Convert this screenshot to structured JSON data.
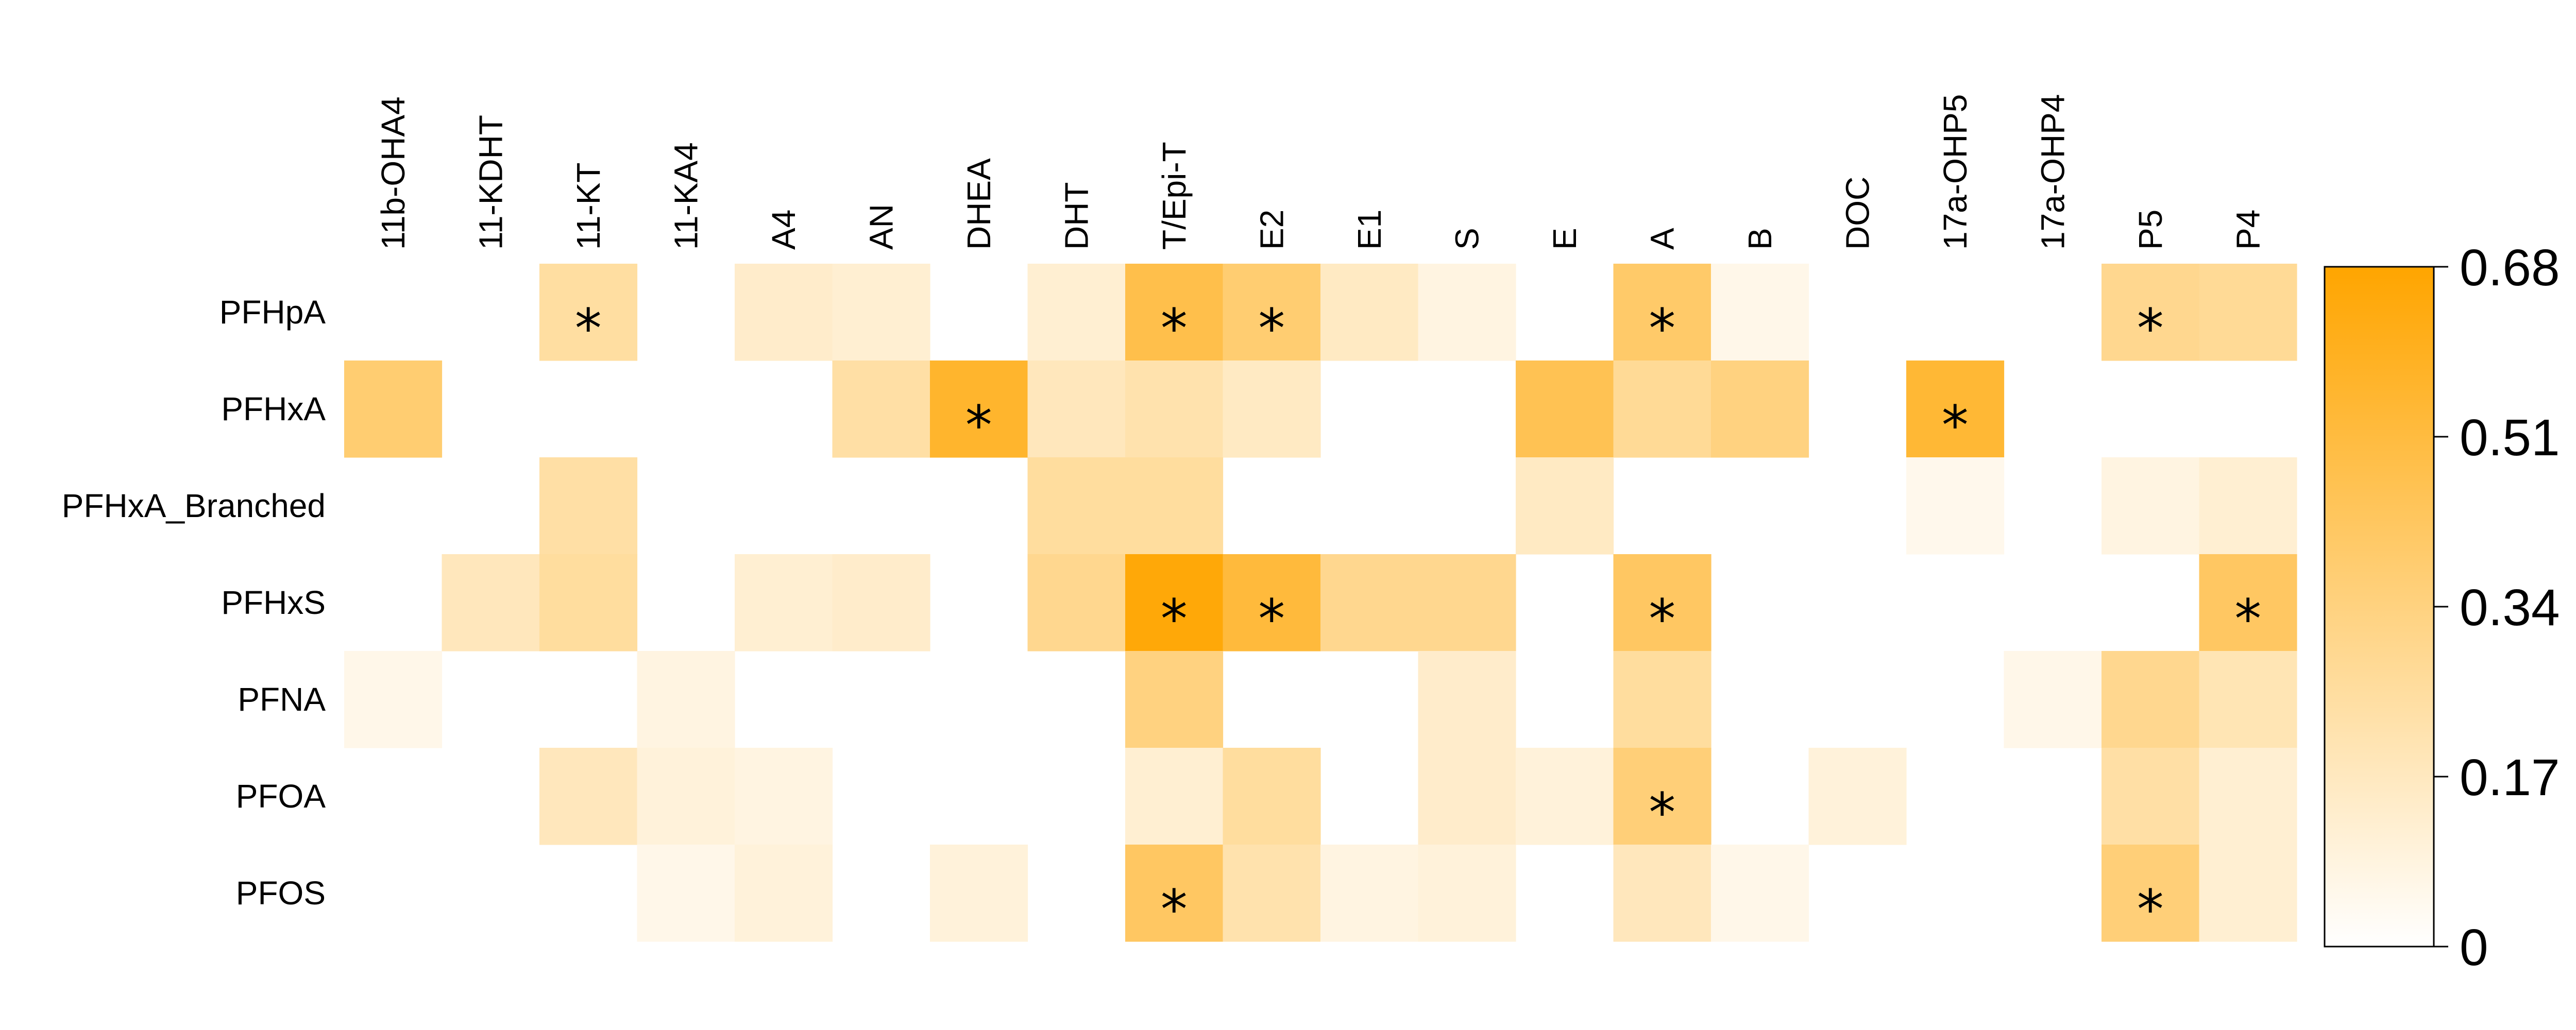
{
  "chart_data": {
    "type": "heatmap",
    "columns": [
      "11b-OHA4",
      "11-KDHT",
      "11-KT",
      "11-KA4",
      "A4",
      "AN",
      "DHEA",
      "DHT",
      "T/Epi-T",
      "E2",
      "E1",
      "S",
      "E",
      "A",
      "B",
      "DOC",
      "17a-OHP5",
      "17a-OHP4",
      "P5",
      "P4"
    ],
    "rows": [
      "PFHpA",
      "PFHxA",
      "PFHxA_Branched",
      "PFHxS",
      "PFNA",
      "PFOA",
      "PFOS"
    ],
    "values": [
      [
        0,
        0,
        0.25,
        0,
        0.14,
        0.12,
        0,
        0.12,
        0.48,
        0.38,
        0.16,
        0.08,
        0,
        0.4,
        0.06,
        0,
        0,
        0,
        0.3,
        0.28
      ],
      [
        0.38,
        0,
        0,
        0,
        0,
        0.24,
        0.56,
        0.18,
        0.22,
        0.16,
        0,
        0,
        0.46,
        0.28,
        0.34,
        0,
        0.54,
        0,
        0,
        0
      ],
      [
        0,
        0,
        0.24,
        0,
        0,
        0,
        0,
        0.26,
        0.26,
        0,
        0,
        0,
        0.16,
        0,
        0,
        0,
        0.05,
        0,
        0.08,
        0.12
      ],
      [
        0,
        0.18,
        0.26,
        0,
        0.12,
        0.14,
        0,
        0.3,
        0.66,
        0.52,
        0.3,
        0.3,
        0,
        0.42,
        0,
        0,
        0,
        0,
        0,
        0.42
      ],
      [
        0.06,
        0,
        0,
        0.08,
        0,
        0,
        0,
        0,
        0.34,
        0,
        0,
        0.14,
        0,
        0.26,
        0,
        0,
        0,
        0.06,
        0.3,
        0.2
      ],
      [
        0,
        0,
        0.18,
        0.1,
        0.08,
        0,
        0,
        0,
        0.12,
        0.26,
        0,
        0.14,
        0.1,
        0.36,
        0,
        0.1,
        0,
        0,
        0.24,
        0.12
      ],
      [
        0,
        0,
        0,
        0.06,
        0.1,
        0,
        0.1,
        0,
        0.42,
        0.22,
        0.08,
        0.1,
        0,
        0.18,
        0.06,
        0,
        0,
        0,
        0.36,
        0.12
      ]
    ],
    "significance": [
      [
        false,
        false,
        true,
        false,
        false,
        false,
        false,
        false,
        true,
        true,
        false,
        false,
        false,
        true,
        false,
        false,
        false,
        false,
        true,
        false
      ],
      [
        false,
        false,
        false,
        false,
        false,
        false,
        true,
        false,
        false,
        false,
        false,
        false,
        false,
        false,
        false,
        false,
        true,
        false,
        false,
        false
      ],
      [
        false,
        false,
        false,
        false,
        false,
        false,
        false,
        false,
        false,
        false,
        false,
        false,
        false,
        false,
        false,
        false,
        false,
        false,
        false,
        false
      ],
      [
        false,
        false,
        false,
        false,
        false,
        false,
        false,
        false,
        true,
        true,
        false,
        false,
        false,
        true,
        false,
        false,
        false,
        false,
        false,
        true
      ],
      [
        false,
        false,
        false,
        false,
        false,
        false,
        false,
        false,
        false,
        false,
        false,
        false,
        false,
        false,
        false,
        false,
        false,
        false,
        false,
        false
      ],
      [
        false,
        false,
        false,
        false,
        false,
        false,
        false,
        false,
        false,
        false,
        false,
        false,
        false,
        true,
        false,
        false,
        false,
        false,
        false,
        false
      ],
      [
        false,
        false,
        false,
        false,
        false,
        false,
        false,
        false,
        true,
        false,
        false,
        false,
        false,
        false,
        false,
        false,
        false,
        false,
        true,
        false
      ]
    ],
    "significance_marker": "*",
    "colorbar": {
      "min": 0,
      "max": 0.68,
      "ticks": [
        "0",
        "0.17",
        "0.34",
        "0.51",
        "0.68"
      ],
      "tick_values": [
        0,
        0.17,
        0.34,
        0.51,
        0.68
      ],
      "low_color": "#ffffff",
      "high_color": "#ffa500",
      "placement": "right"
    }
  }
}
